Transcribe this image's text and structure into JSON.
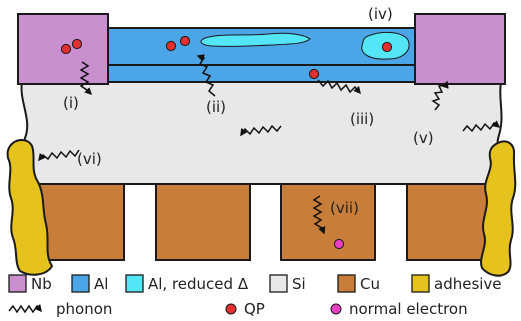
{
  "colors": {
    "nb": "#c98fce",
    "al": "#4ba5e6",
    "al_reduced": "#54e6f6",
    "si": "#e8e8e8",
    "cu": "#c87e3a",
    "adhesive": "#e6c21c",
    "qp": "#e22f2f",
    "normal_electron": "#e63fc2"
  },
  "process_labels": [
    "(i)",
    "(ii)",
    "(iii)",
    "(iv)",
    "(v)",
    "(vi)",
    "(vii)"
  ],
  "legend": {
    "row1": [
      {
        "key": "nb",
        "label": "Nb"
      },
      {
        "key": "al",
        "label": "Al"
      },
      {
        "key": "al_reduced",
        "label": "Al, reduced Δ"
      },
      {
        "key": "si",
        "label": "Si"
      },
      {
        "key": "cu",
        "label": "Cu"
      },
      {
        "key": "adhesive",
        "label": "adhesive"
      }
    ],
    "row2": [
      {
        "key": "phonon",
        "label": "phonon"
      },
      {
        "key": "qp",
        "label": "QP"
      },
      {
        "key": "normal_electron",
        "label": "normal electron"
      }
    ]
  }
}
